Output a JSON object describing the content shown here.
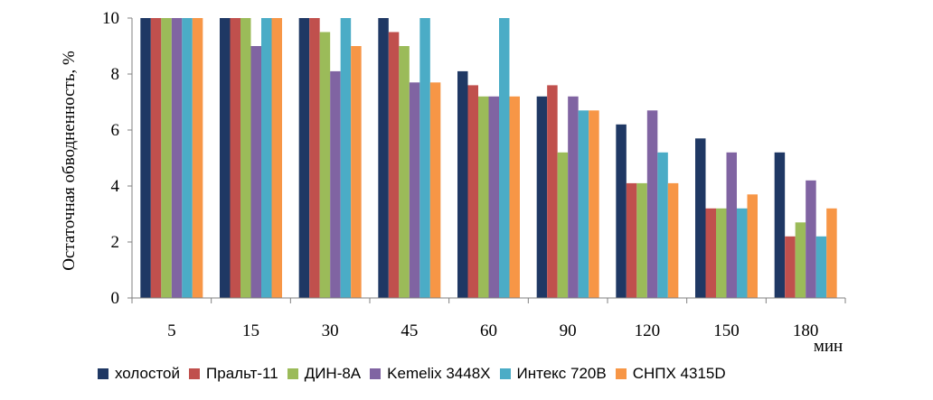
{
  "chart_data": {
    "type": "bar",
    "title": "",
    "xlabel": "",
    "x_unit": "мин",
    "ylabel": "Остаточная обводненность, %",
    "ylim": [
      0,
      10
    ],
    "yticks": [
      0,
      2,
      4,
      6,
      8,
      10
    ],
    "grid": false,
    "legend_position": "bottom",
    "categories": [
      "5",
      "15",
      "30",
      "45",
      "60",
      "90",
      "120",
      "150",
      "180"
    ],
    "series": [
      {
        "name": "холостой",
        "color": "#1f3864",
        "values": [
          10,
          10,
          10,
          10,
          8.1,
          7.2,
          6.2,
          5.7,
          5.2
        ]
      },
      {
        "name": "Пральт-11",
        "color": "#c0504d",
        "values": [
          10,
          10,
          10,
          9.5,
          7.6,
          7.6,
          4.1,
          3.2,
          2.2
        ]
      },
      {
        "name": "ДИН-8А",
        "color": "#9bbb59",
        "values": [
          10,
          10,
          9.5,
          9.0,
          7.2,
          5.2,
          4.1,
          3.2,
          2.7
        ]
      },
      {
        "name": "Kemelix 3448X",
        "color": "#8064a2",
        "values": [
          10,
          9.0,
          8.1,
          7.7,
          7.2,
          7.2,
          6.7,
          5.2,
          4.2
        ]
      },
      {
        "name": "Интекс 720В",
        "color": "#4bacc6",
        "values": [
          10,
          10,
          10,
          10,
          10,
          6.7,
          5.2,
          3.2,
          2.2
        ]
      },
      {
        "name": "СНПХ 4315D",
        "color": "#f79646",
        "values": [
          10,
          10,
          9.0,
          7.7,
          7.2,
          6.7,
          4.1,
          3.7,
          3.2
        ]
      }
    ]
  }
}
